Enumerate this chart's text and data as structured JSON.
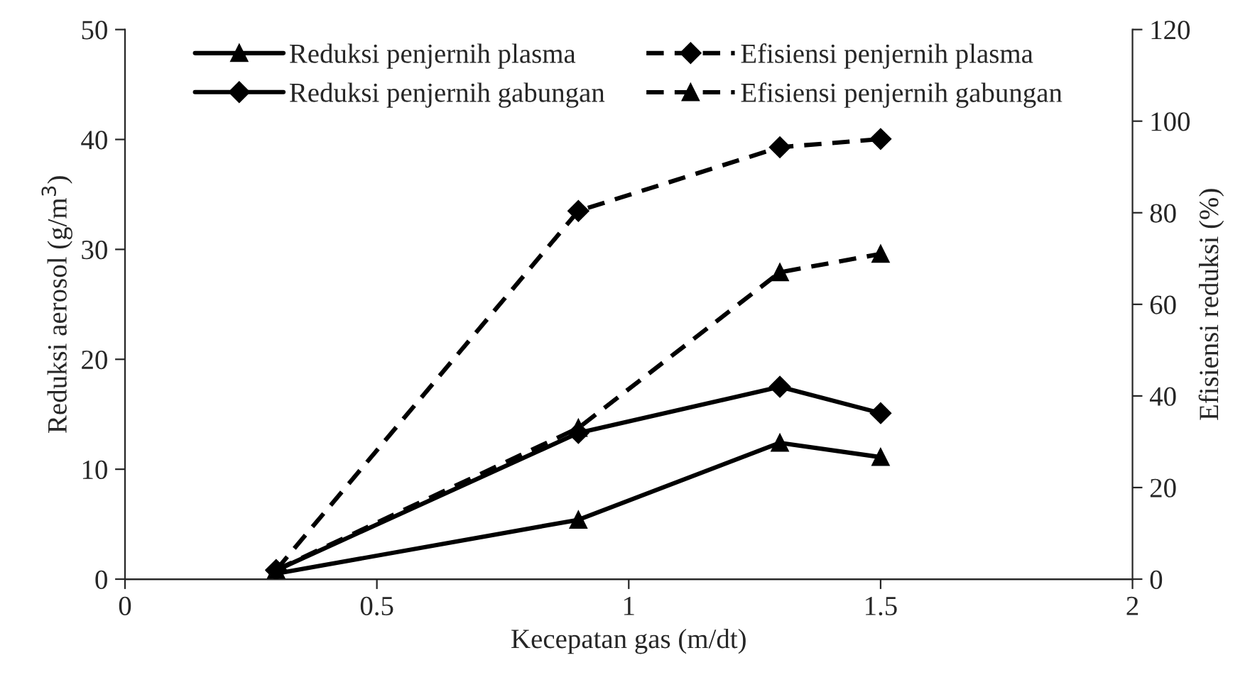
{
  "chart_data": {
    "type": "line",
    "xlabel": "Kecepatan gas (m/dt)",
    "ylabel": "Reduksi aerosol (g/m$^{3}$)",
    "y2label": "Efisiensi reduksi (%)",
    "x": [
      0.3,
      0.9,
      1.3,
      1.5
    ],
    "series": [
      {
        "name": "Reduksi penjernih plasma",
        "color": "#000000",
        "values": [
          0.5,
          5.4,
          12.4,
          11.1
        ],
        "marker": "triangle",
        "line_style": "solid"
      },
      {
        "name": "Reduksi penjernih gabungan",
        "color": "#000000",
        "values": [
          0.8,
          13.3,
          17.5,
          15.1
        ],
        "marker": "diamond",
        "line_style": "solid"
      },
      {
        "name": "Efisiensi penjernih plasma",
        "color": "#000000",
        "values": [
          2,
          80.4,
          94.3,
          96.1
        ],
        "marker": "diamond",
        "line_style": "dashed",
        "axis": "y2"
      },
      {
        "name": "Efisiensi penjernih gabungan",
        "color": "#000000",
        "values": [
          2,
          33,
          67,
          71
        ],
        "marker": "triangle",
        "line_style": "dashed",
        "axis": "y2"
      }
    ],
    "xlim": [
      0,
      2
    ],
    "xticks": [
      0,
      0.5,
      1,
      1.5,
      2
    ],
    "ylim": [
      0,
      50
    ],
    "yticks": [
      0,
      10,
      20,
      30,
      40,
      50
    ],
    "y2lim": [
      0,
      120
    ],
    "y2ticks": [
      0,
      20,
      40,
      60,
      80,
      100,
      120
    ],
    "legend": "top",
    "grid": false
  }
}
